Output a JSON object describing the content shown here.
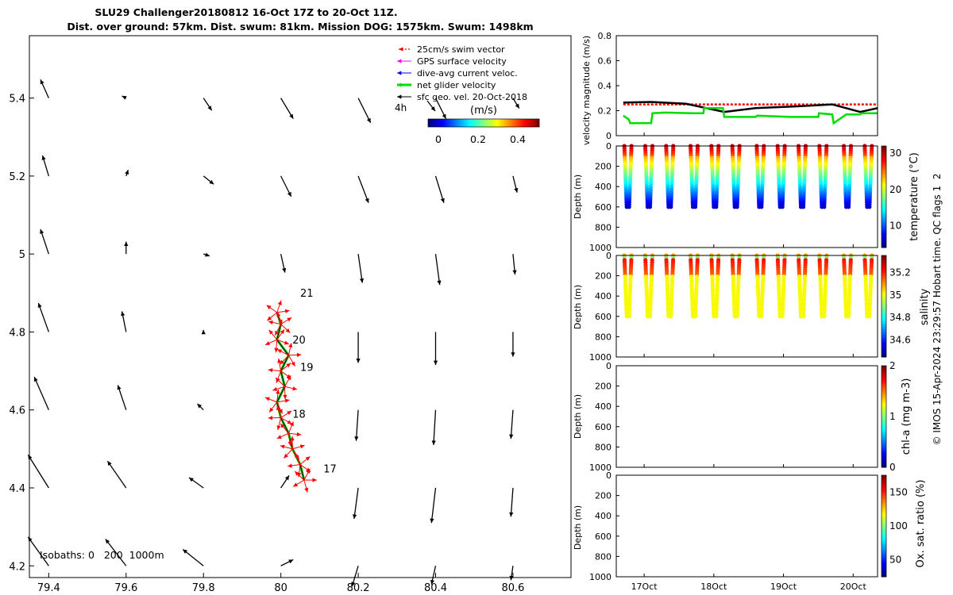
{
  "title": {
    "line1": "SLU29 Challenger20180812 16-Oct 17Z to 20-Oct 11Z.",
    "line2": "Dist. over ground: 57km. Dist. swum: 81km. Mission DOG: 1575km. Swum: 1498km"
  },
  "credit": "© IMOS 15-Apr-2024 23:29:57 Hobart time. QC flags 1  2",
  "colors": {
    "swim": "#ff0000",
    "gps": "#ff00ff",
    "dive": "#0000ff",
    "net": "#00dd00",
    "sfc": "#000000"
  },
  "chart_data": [
    {
      "type": "scatter",
      "name": "map",
      "xlabel": "",
      "ylabel": "",
      "xlim": [
        79.35,
        80.75
      ],
      "ylim": [
        4.17,
        5.56
      ],
      "xticks": [
        79.4,
        79.6,
        79.8,
        80,
        80.2,
        80.4,
        80.6
      ],
      "xtick_labels": [
        "79.4",
        "79.6",
        "79.8",
        "80",
        "80.2",
        "80.4",
        "80.6"
      ],
      "yticks": [
        4.2,
        4.4,
        4.6,
        4.8,
        5,
        5.2,
        5.4
      ],
      "ytick_labels": [
        "4.2",
        "4.4",
        "4.6",
        "4.8",
        "5",
        "5.2",
        "5.4"
      ],
      "legend": {
        "placement": "top-right",
        "items": [
          {
            "label": "25cm/s swim vector",
            "color": "#ff0000",
            "style": "dotted-arrow"
          },
          {
            "label": "GPS surface velocity",
            "color": "#ff00ff",
            "style": "arrow"
          },
          {
            "label": "dive-avg current veloc.",
            "color": "#0000ff",
            "style": "arrow"
          },
          {
            "label": "net glider velocity",
            "color": "#00dd00",
            "style": "thick-arrow"
          },
          {
            "label": "sfc geo. vel. 20-Oct-2018",
            "color": "#000000",
            "style": "arrow"
          }
        ],
        "scale_label": "4h"
      },
      "colorbar": {
        "label": "(m/s)",
        "ticks": [
          0,
          0.2,
          0.4
        ],
        "tick_labels": [
          "0",
          "0.2",
          "0.4"
        ],
        "range": [
          -0.05,
          0.5
        ]
      },
      "isobaths_label": "Isobaths: 0   200  1000m",
      "day_labels": [
        {
          "text": "21",
          "lon": 80.05,
          "lat": 4.89
        },
        {
          "text": "20",
          "lon": 80.03,
          "lat": 4.77
        },
        {
          "text": "19",
          "lon": 80.05,
          "lat": 4.7
        },
        {
          "text": "18",
          "lon": 80.03,
          "lat": 4.58
        },
        {
          "text": "17",
          "lon": 80.11,
          "lat": 4.44
        }
      ],
      "track": [
        {
          "lon": 80.06,
          "lat": 4.42
        },
        {
          "lon": 80.05,
          "lat": 4.46
        },
        {
          "lon": 80.03,
          "lat": 4.5
        },
        {
          "lon": 80.02,
          "lat": 4.54
        },
        {
          "lon": 80.0,
          "lat": 4.58
        },
        {
          "lon": 79.99,
          "lat": 4.62
        },
        {
          "lon": 80.01,
          "lat": 4.66
        },
        {
          "lon": 80.0,
          "lat": 4.7
        },
        {
          "lon": 80.02,
          "lat": 4.74
        },
        {
          "lon": 79.99,
          "lat": 4.78
        },
        {
          "lon": 80.0,
          "lat": 4.82
        },
        {
          "lon": 79.99,
          "lat": 4.85
        }
      ],
      "sfc_vectors": [
        {
          "lon": 79.4,
          "lat": 5.4,
          "u": -0.04,
          "v": 0.09
        },
        {
          "lon": 79.6,
          "lat": 5.4,
          "u": -0.02,
          "v": 0.01
        },
        {
          "lon": 79.8,
          "lat": 5.4,
          "u": 0.04,
          "v": -0.06
        },
        {
          "lon": 80.0,
          "lat": 5.4,
          "u": 0.06,
          "v": -0.1
        },
        {
          "lon": 80.2,
          "lat": 5.4,
          "u": 0.06,
          "v": -0.12
        },
        {
          "lon": 80.4,
          "lat": 5.4,
          "u": 0.05,
          "v": -0.1
        },
        {
          "lon": 80.6,
          "lat": 5.4,
          "u": 0.03,
          "v": -0.05
        },
        {
          "lon": 79.4,
          "lat": 5.2,
          "u": -0.03,
          "v": 0.1
        },
        {
          "lon": 79.6,
          "lat": 5.2,
          "u": 0.01,
          "v": 0.03
        },
        {
          "lon": 79.8,
          "lat": 5.2,
          "u": 0.05,
          "v": -0.04
        },
        {
          "lon": 80.0,
          "lat": 5.2,
          "u": 0.05,
          "v": -0.1
        },
        {
          "lon": 80.2,
          "lat": 5.2,
          "u": 0.05,
          "v": -0.13
        },
        {
          "lon": 80.4,
          "lat": 5.2,
          "u": 0.04,
          "v": -0.13
        },
        {
          "lon": 80.6,
          "lat": 5.2,
          "u": 0.02,
          "v": -0.08
        },
        {
          "lon": 79.4,
          "lat": 5.0,
          "u": -0.04,
          "v": 0.12
        },
        {
          "lon": 79.6,
          "lat": 5.0,
          "u": 0.0,
          "v": 0.06
        },
        {
          "lon": 79.8,
          "lat": 5.0,
          "u": 0.03,
          "v": -0.01
        },
        {
          "lon": 80.0,
          "lat": 5.0,
          "u": 0.02,
          "v": -0.09
        },
        {
          "lon": 80.2,
          "lat": 5.0,
          "u": 0.02,
          "v": -0.14
        },
        {
          "lon": 80.4,
          "lat": 5.0,
          "u": 0.02,
          "v": -0.15
        },
        {
          "lon": 80.6,
          "lat": 5.0,
          "u": 0.01,
          "v": -0.1
        },
        {
          "lon": 79.4,
          "lat": 4.8,
          "u": -0.05,
          "v": 0.14
        },
        {
          "lon": 79.6,
          "lat": 4.8,
          "u": -0.02,
          "v": 0.1
        },
        {
          "lon": 79.8,
          "lat": 4.8,
          "u": 0.0,
          "v": 0.01
        },
        {
          "lon": 80.2,
          "lat": 4.8,
          "u": 0.0,
          "v": -0.15
        },
        {
          "lon": 80.4,
          "lat": 4.8,
          "u": 0.0,
          "v": -0.16
        },
        {
          "lon": 80.6,
          "lat": 4.8,
          "u": 0.0,
          "v": -0.12
        },
        {
          "lon": 79.4,
          "lat": 4.6,
          "u": -0.07,
          "v": 0.16
        },
        {
          "lon": 79.6,
          "lat": 4.6,
          "u": -0.04,
          "v": 0.12
        },
        {
          "lon": 79.8,
          "lat": 4.6,
          "u": -0.03,
          "v": 0.03
        },
        {
          "lon": 80.2,
          "lat": 4.6,
          "u": -0.01,
          "v": -0.15
        },
        {
          "lon": 80.4,
          "lat": 4.6,
          "u": -0.01,
          "v": -0.17
        },
        {
          "lon": 80.6,
          "lat": 4.6,
          "u": -0.01,
          "v": -0.14
        },
        {
          "lon": 79.4,
          "lat": 4.4,
          "u": -0.1,
          "v": 0.16
        },
        {
          "lon": 79.6,
          "lat": 4.4,
          "u": -0.09,
          "v": 0.13
        },
        {
          "lon": 79.8,
          "lat": 4.4,
          "u": -0.07,
          "v": 0.05
        },
        {
          "lon": 80.0,
          "lat": 4.4,
          "u": 0.04,
          "v": 0.06
        },
        {
          "lon": 80.2,
          "lat": 4.4,
          "u": -0.02,
          "v": -0.15
        },
        {
          "lon": 80.4,
          "lat": 4.4,
          "u": -0.02,
          "v": -0.17
        },
        {
          "lon": 80.6,
          "lat": 4.4,
          "u": -0.01,
          "v": -0.14
        },
        {
          "lon": 79.4,
          "lat": 4.2,
          "u": -0.1,
          "v": 0.14
        },
        {
          "lon": 79.6,
          "lat": 4.2,
          "u": -0.1,
          "v": 0.13
        },
        {
          "lon": 79.8,
          "lat": 4.2,
          "u": -0.1,
          "v": 0.08
        },
        {
          "lon": 80.0,
          "lat": 4.2,
          "u": 0.06,
          "v": 0.03
        },
        {
          "lon": 80.2,
          "lat": 4.2,
          "u": -0.03,
          "v": -0.1
        },
        {
          "lon": 80.4,
          "lat": 4.2,
          "u": -0.02,
          "v": -0.09
        },
        {
          "lon": 80.6,
          "lat": 4.2,
          "u": -0.01,
          "v": -0.07
        }
      ]
    },
    {
      "type": "line",
      "name": "velocity",
      "ylabel": "velocity magnitude (m/s)",
      "xlim": [
        16.6,
        20.35
      ],
      "ylim": [
        0,
        0.8
      ],
      "yticks": [
        0,
        0.2,
        0.4,
        0.6,
        0.8
      ],
      "ytick_labels": [
        "0",
        "0.2",
        "0.4",
        "0.6",
        "0.8"
      ],
      "series": [
        {
          "color": "#ff0000",
          "style": "dotted",
          "x": [
            16.7,
            20.35
          ],
          "y": [
            0.25,
            0.25
          ]
        },
        {
          "color": "#000000",
          "x": [
            16.7,
            17.1,
            17.6,
            18.15,
            18.6,
            19.2,
            19.7,
            20.1,
            20.35
          ],
          "y": [
            0.265,
            0.27,
            0.255,
            0.19,
            0.22,
            0.235,
            0.25,
            0.19,
            0.22
          ]
        },
        {
          "color": "#00dd00",
          "x": [
            16.7,
            16.78,
            16.8,
            17.1,
            17.12,
            17.3,
            17.7,
            17.85,
            17.86,
            18.13,
            18.15,
            18.6,
            18.62,
            19.1,
            19.5,
            19.51,
            19.7,
            19.72,
            19.9,
            20.1,
            20.12,
            20.35
          ],
          "y": [
            0.16,
            0.13,
            0.1,
            0.1,
            0.18,
            0.185,
            0.18,
            0.18,
            0.22,
            0.22,
            0.15,
            0.15,
            0.16,
            0.15,
            0.15,
            0.18,
            0.17,
            0.1,
            0.17,
            0.17,
            0.18,
            0.18
          ]
        }
      ]
    },
    {
      "type": "scatter",
      "name": "temperature",
      "ylabel": "Depth (m)",
      "cbar_label": "temperature (°C)",
      "cbar_ticks": [
        10,
        20,
        30
      ],
      "cbar_tick_labels": [
        "10",
        "20",
        "30"
      ],
      "crange": [
        4,
        32
      ],
      "ylim": [
        0,
        1000
      ],
      "yticks": [
        0,
        200,
        400,
        600,
        800,
        1000
      ],
      "ytick_labels": [
        "0",
        "200",
        "400",
        "600",
        "800",
        "1000"
      ],
      "profile_times": [
        16.75,
        17.05,
        17.35,
        17.7,
        18.0,
        18.3,
        18.65,
        18.95,
        19.25,
        19.55,
        19.9,
        20.2
      ],
      "max_depth": 600
    },
    {
      "type": "scatter",
      "name": "salinity",
      "ylabel": "Depth (m)",
      "cbar_label": "salinity",
      "cbar_ticks": [
        34.6,
        34.8,
        35,
        35.2
      ],
      "cbar_tick_labels": [
        "34.6",
        "34.8",
        "35",
        "35.2"
      ],
      "crange": [
        34.45,
        35.35
      ],
      "ylim": [
        0,
        1000
      ],
      "yticks": [
        0,
        200,
        400,
        600,
        800,
        1000
      ],
      "ytick_labels": [
        "0",
        "200",
        "400",
        "600",
        "800",
        "1000"
      ],
      "profile_times": [
        16.75,
        17.05,
        17.35,
        17.7,
        18.0,
        18.3,
        18.65,
        18.95,
        19.25,
        19.55,
        19.9,
        20.2
      ],
      "max_depth": 600
    },
    {
      "type": "scatter",
      "name": "chla",
      "ylabel": "Depth (m)",
      "cbar_label": "chl-a (mg m-3)",
      "cbar_ticks": [
        0,
        1,
        2
      ],
      "cbar_tick_labels": [
        "0",
        "1",
        "2"
      ],
      "crange": [
        0,
        2
      ],
      "ylim": [
        0,
        1000
      ],
      "yticks": [
        0,
        200,
        400,
        600,
        800,
        1000
      ],
      "ytick_labels": [
        "0",
        "200",
        "400",
        "600",
        "800",
        "1000"
      ]
    },
    {
      "type": "scatter",
      "name": "oxygen",
      "ylabel": "Depth (m)",
      "cbar_label": "Ox. sat. ratio (%)",
      "cbar_ticks": [
        50,
        100,
        150
      ],
      "cbar_tick_labels": [
        "50",
        "100",
        "150"
      ],
      "crange": [
        25,
        175
      ],
      "ylim": [
        0,
        1000
      ],
      "yticks": [
        0,
        200,
        400,
        600,
        800,
        1000
      ],
      "ytick_labels": [
        "0",
        "200",
        "400",
        "600",
        "800",
        "1000"
      ],
      "xticks": [
        17,
        18,
        19,
        20
      ],
      "xtick_labels": [
        "17Oct",
        "18Oct",
        "19Oct",
        "20Oct"
      ]
    }
  ]
}
